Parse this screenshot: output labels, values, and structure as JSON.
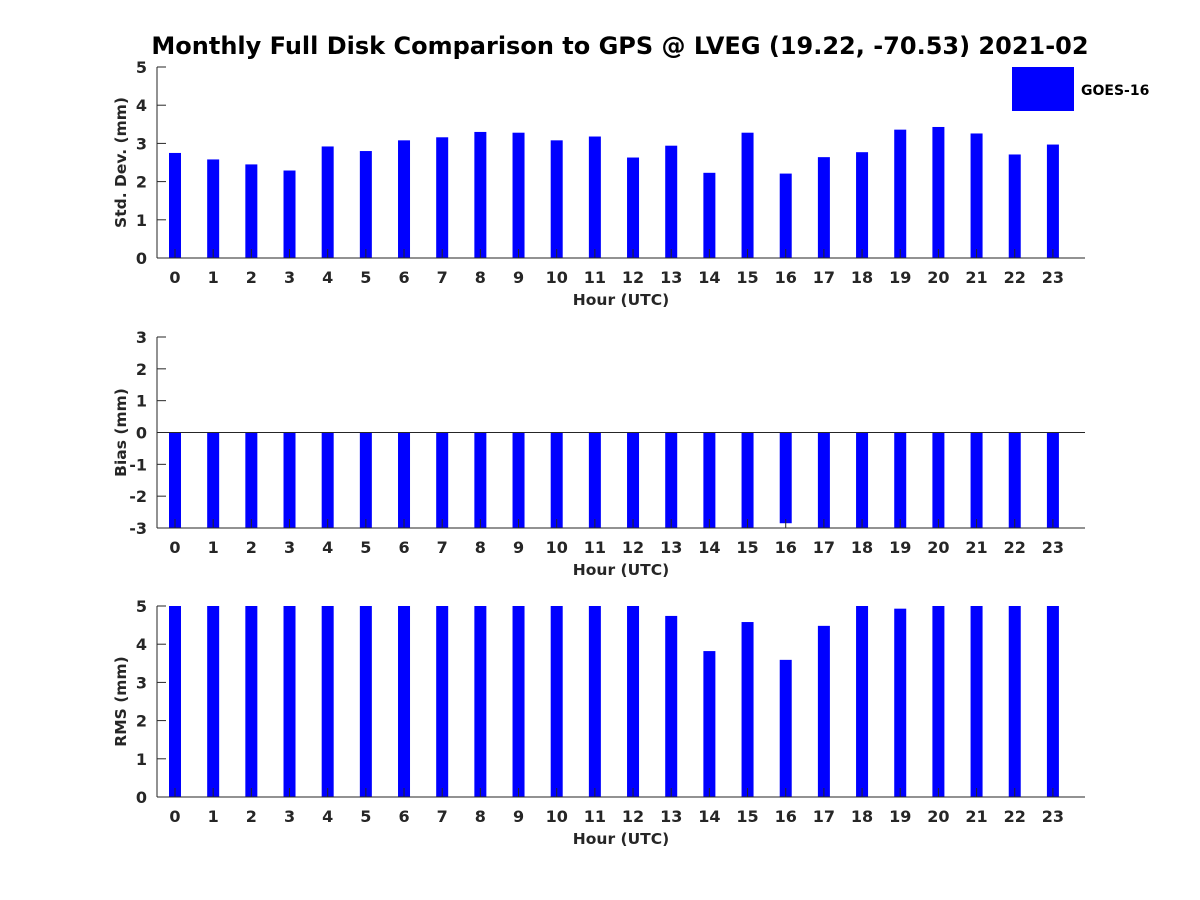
{
  "title": "Monthly Full Disk Comparison to GPS @ LVEG (19.22, -70.53) 2021-02",
  "colors": {
    "bar": "#0000ff",
    "axis": "#262626"
  },
  "chart_data": [
    {
      "type": "bar",
      "title": "Monthly Full Disk Comparison to GPS @ LVEG (19.22, -70.53) 2021-02",
      "xlabel": "Hour (UTC)",
      "ylabel": "Std. Dev. (mm)",
      "ylim": [
        0,
        5
      ],
      "yticks": [
        0,
        1,
        2,
        3,
        4,
        5
      ],
      "categories": [
        "0",
        "1",
        "2",
        "3",
        "4",
        "5",
        "6",
        "7",
        "8",
        "9",
        "10",
        "11",
        "12",
        "13",
        "14",
        "15",
        "16",
        "17",
        "18",
        "19",
        "20",
        "21",
        "22",
        "23"
      ],
      "series": [
        {
          "name": "GOES-16",
          "values": [
            2.75,
            2.58,
            2.45,
            2.29,
            2.92,
            2.8,
            3.08,
            3.16,
            3.3,
            3.28,
            3.08,
            3.18,
            2.63,
            2.94,
            2.23,
            3.28,
            2.21,
            2.64,
            2.77,
            3.36,
            3.43,
            3.26,
            2.71,
            2.97
          ]
        }
      ],
      "legend": {
        "entries": [
          "GOES-16"
        ],
        "position": "top-right outside"
      }
    },
    {
      "type": "bar",
      "xlabel": "Hour (UTC)",
      "ylabel": "Bias (mm)",
      "ylim": [
        -3,
        3
      ],
      "yticks": [
        -3,
        -2,
        -1,
        0,
        1,
        2,
        3
      ],
      "categories": [
        "0",
        "1",
        "2",
        "3",
        "4",
        "5",
        "6",
        "7",
        "8",
        "9",
        "10",
        "11",
        "12",
        "13",
        "14",
        "15",
        "16",
        "17",
        "18",
        "19",
        "20",
        "21",
        "22",
        "23"
      ],
      "series": [
        {
          "name": "GOES-16",
          "values": [
            -3,
            -3,
            -3,
            -3,
            -3,
            -3,
            -3,
            -3,
            -3,
            -3,
            -3,
            -3,
            -3,
            -3,
            -3,
            -3,
            -2.85,
            -3,
            -3,
            -3,
            -3,
            -3,
            -3,
            -3
          ]
        }
      ]
    },
    {
      "type": "bar",
      "xlabel": "Hour (UTC)",
      "ylabel": "RMS (mm)",
      "ylim": [
        0,
        5
      ],
      "yticks": [
        0,
        1,
        2,
        3,
        4,
        5
      ],
      "categories": [
        "0",
        "1",
        "2",
        "3",
        "4",
        "5",
        "6",
        "7",
        "8",
        "9",
        "10",
        "11",
        "12",
        "13",
        "14",
        "15",
        "16",
        "17",
        "18",
        "19",
        "20",
        "21",
        "22",
        "23"
      ],
      "series": [
        {
          "name": "GOES-16",
          "values": [
            5,
            5,
            5,
            5,
            5,
            5,
            5,
            5,
            5,
            5,
            5,
            5,
            5,
            4.74,
            3.82,
            4.58,
            3.59,
            4.48,
            5,
            4.93,
            5,
            5,
            5,
            5
          ]
        }
      ]
    }
  ]
}
